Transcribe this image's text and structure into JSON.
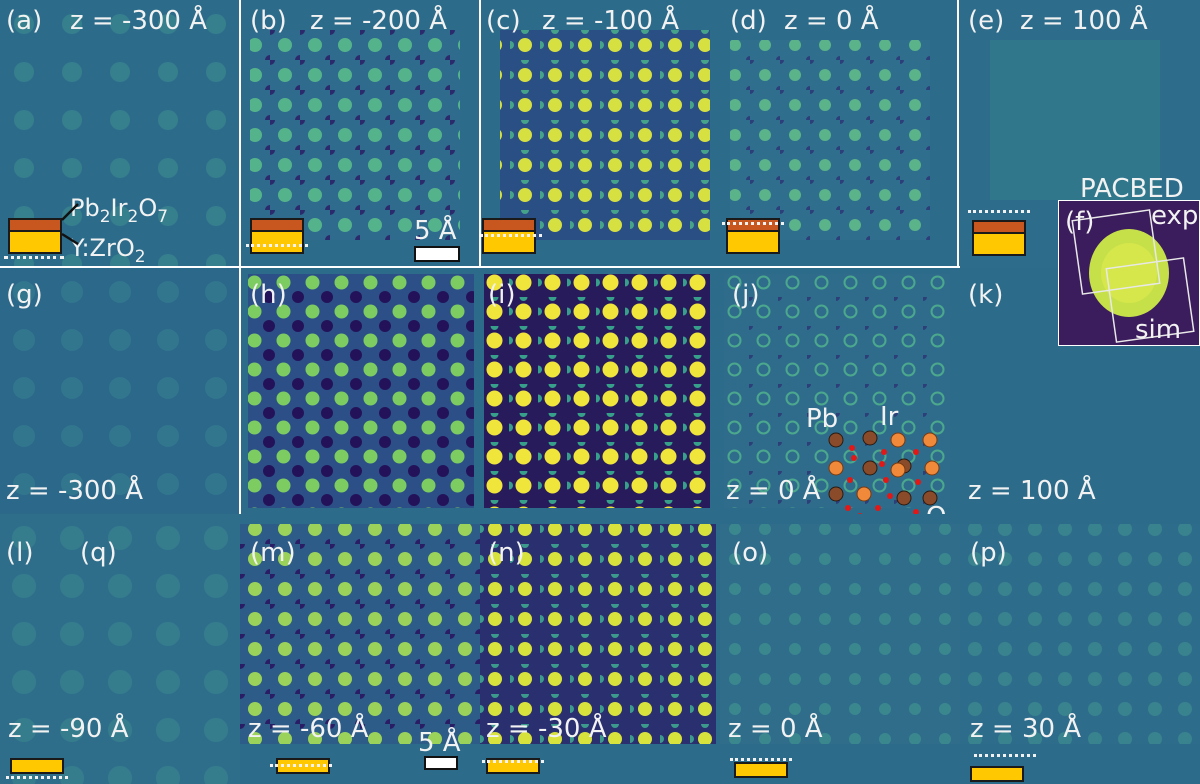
{
  "colors": {
    "bg": "#2e6a8e",
    "orange": "#c8561f",
    "gold": "#ffc800",
    "dot": "#f5e83c"
  },
  "row1": {
    "panels": [
      {
        "letter": "(a)",
        "z": "z = -300 Å"
      },
      {
        "letter": "(b)",
        "z": "z = -200 Å"
      },
      {
        "letter": "(c)",
        "z": "z = -100 Å"
      },
      {
        "letter": "(d)",
        "z": "z = 0 Å"
      },
      {
        "letter": "(e)",
        "z": "z = 100 Å"
      }
    ],
    "materials": {
      "top": "Pb",
      "top_sub1": "2",
      "top_mid": "Ir",
      "top_sub2": "2",
      "top_end": "O",
      "top_sub3": "7",
      "bottom": "Y:ZrO",
      "bottom_sub": "2"
    },
    "scalebar": "5 Å"
  },
  "row2": {
    "panels": [
      {
        "letter": "(g)",
        "z": "z = -300 Å"
      },
      {
        "letter": "(h)",
        "z": ""
      },
      {
        "letter": "(i)",
        "z": ""
      },
      {
        "letter": "(j)",
        "z": "z = 0 Å"
      },
      {
        "letter": "(k)",
        "z": "z = 100 Å"
      }
    ],
    "atoms": {
      "pb": "Pb",
      "ir": "Ir",
      "o": "O"
    }
  },
  "pacbed": {
    "title": "PACBED",
    "letter": "(f)",
    "exp": "exp",
    "sim": "sim"
  },
  "row3": {
    "panels": [
      {
        "letter": "(l)",
        "extra": "(q)",
        "z": "z = -90 Å"
      },
      {
        "letter": "(m)",
        "z": "z = -60 Å"
      },
      {
        "letter": "(n)",
        "z": "z = -30 Å"
      },
      {
        "letter": "(o)",
        "z": "z = 0 Å"
      },
      {
        "letter": "(p)",
        "z": "z = 30 Å"
      }
    ],
    "scalebar": "5 Å"
  }
}
